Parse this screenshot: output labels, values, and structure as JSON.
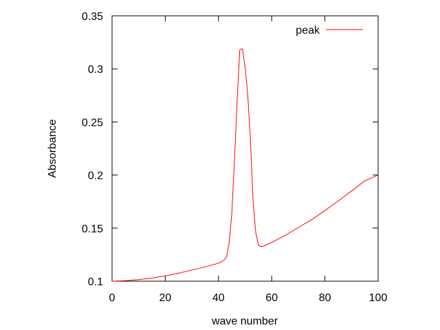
{
  "chart_data": {
    "type": "line",
    "title": "",
    "xlabel": "wave number",
    "ylabel": "Absorbance",
    "xlim": [
      0,
      100
    ],
    "ylim": [
      0.1,
      0.35
    ],
    "xticks": [
      0,
      20,
      40,
      60,
      80,
      100
    ],
    "xtick_labels": [
      "0",
      "20",
      "40",
      "60",
      "80",
      "100"
    ],
    "yticks": [
      0.1,
      0.15,
      0.2,
      0.25,
      0.3,
      0.35
    ],
    "ytick_labels": [
      "0.1",
      "0.15",
      "0.2",
      "0.25",
      "0.3",
      "0.35"
    ],
    "grid": false,
    "legend_position": "top-right",
    "series": [
      {
        "name": "peak",
        "color": "#ff0000",
        "x": [
          0,
          5,
          10,
          15,
          20,
          25,
          30,
          35,
          40,
          42,
          43,
          44,
          45,
          46,
          47,
          48,
          49,
          50,
          51,
          52,
          53,
          54,
          55,
          56,
          57,
          60,
          65,
          70,
          75,
          80,
          85,
          90,
          95,
          100
        ],
        "y": [
          0.1,
          0.1005,
          0.1015,
          0.103,
          0.105,
          0.1075,
          0.1105,
          0.1135,
          0.117,
          0.1195,
          0.1225,
          0.136,
          0.163,
          0.213,
          0.27,
          0.318,
          0.319,
          0.302,
          0.275,
          0.235,
          0.175,
          0.146,
          0.134,
          0.1325,
          0.133,
          0.1365,
          0.143,
          0.1505,
          0.158,
          0.1665,
          0.1755,
          0.185,
          0.1945,
          0.2
        ]
      }
    ]
  }
}
